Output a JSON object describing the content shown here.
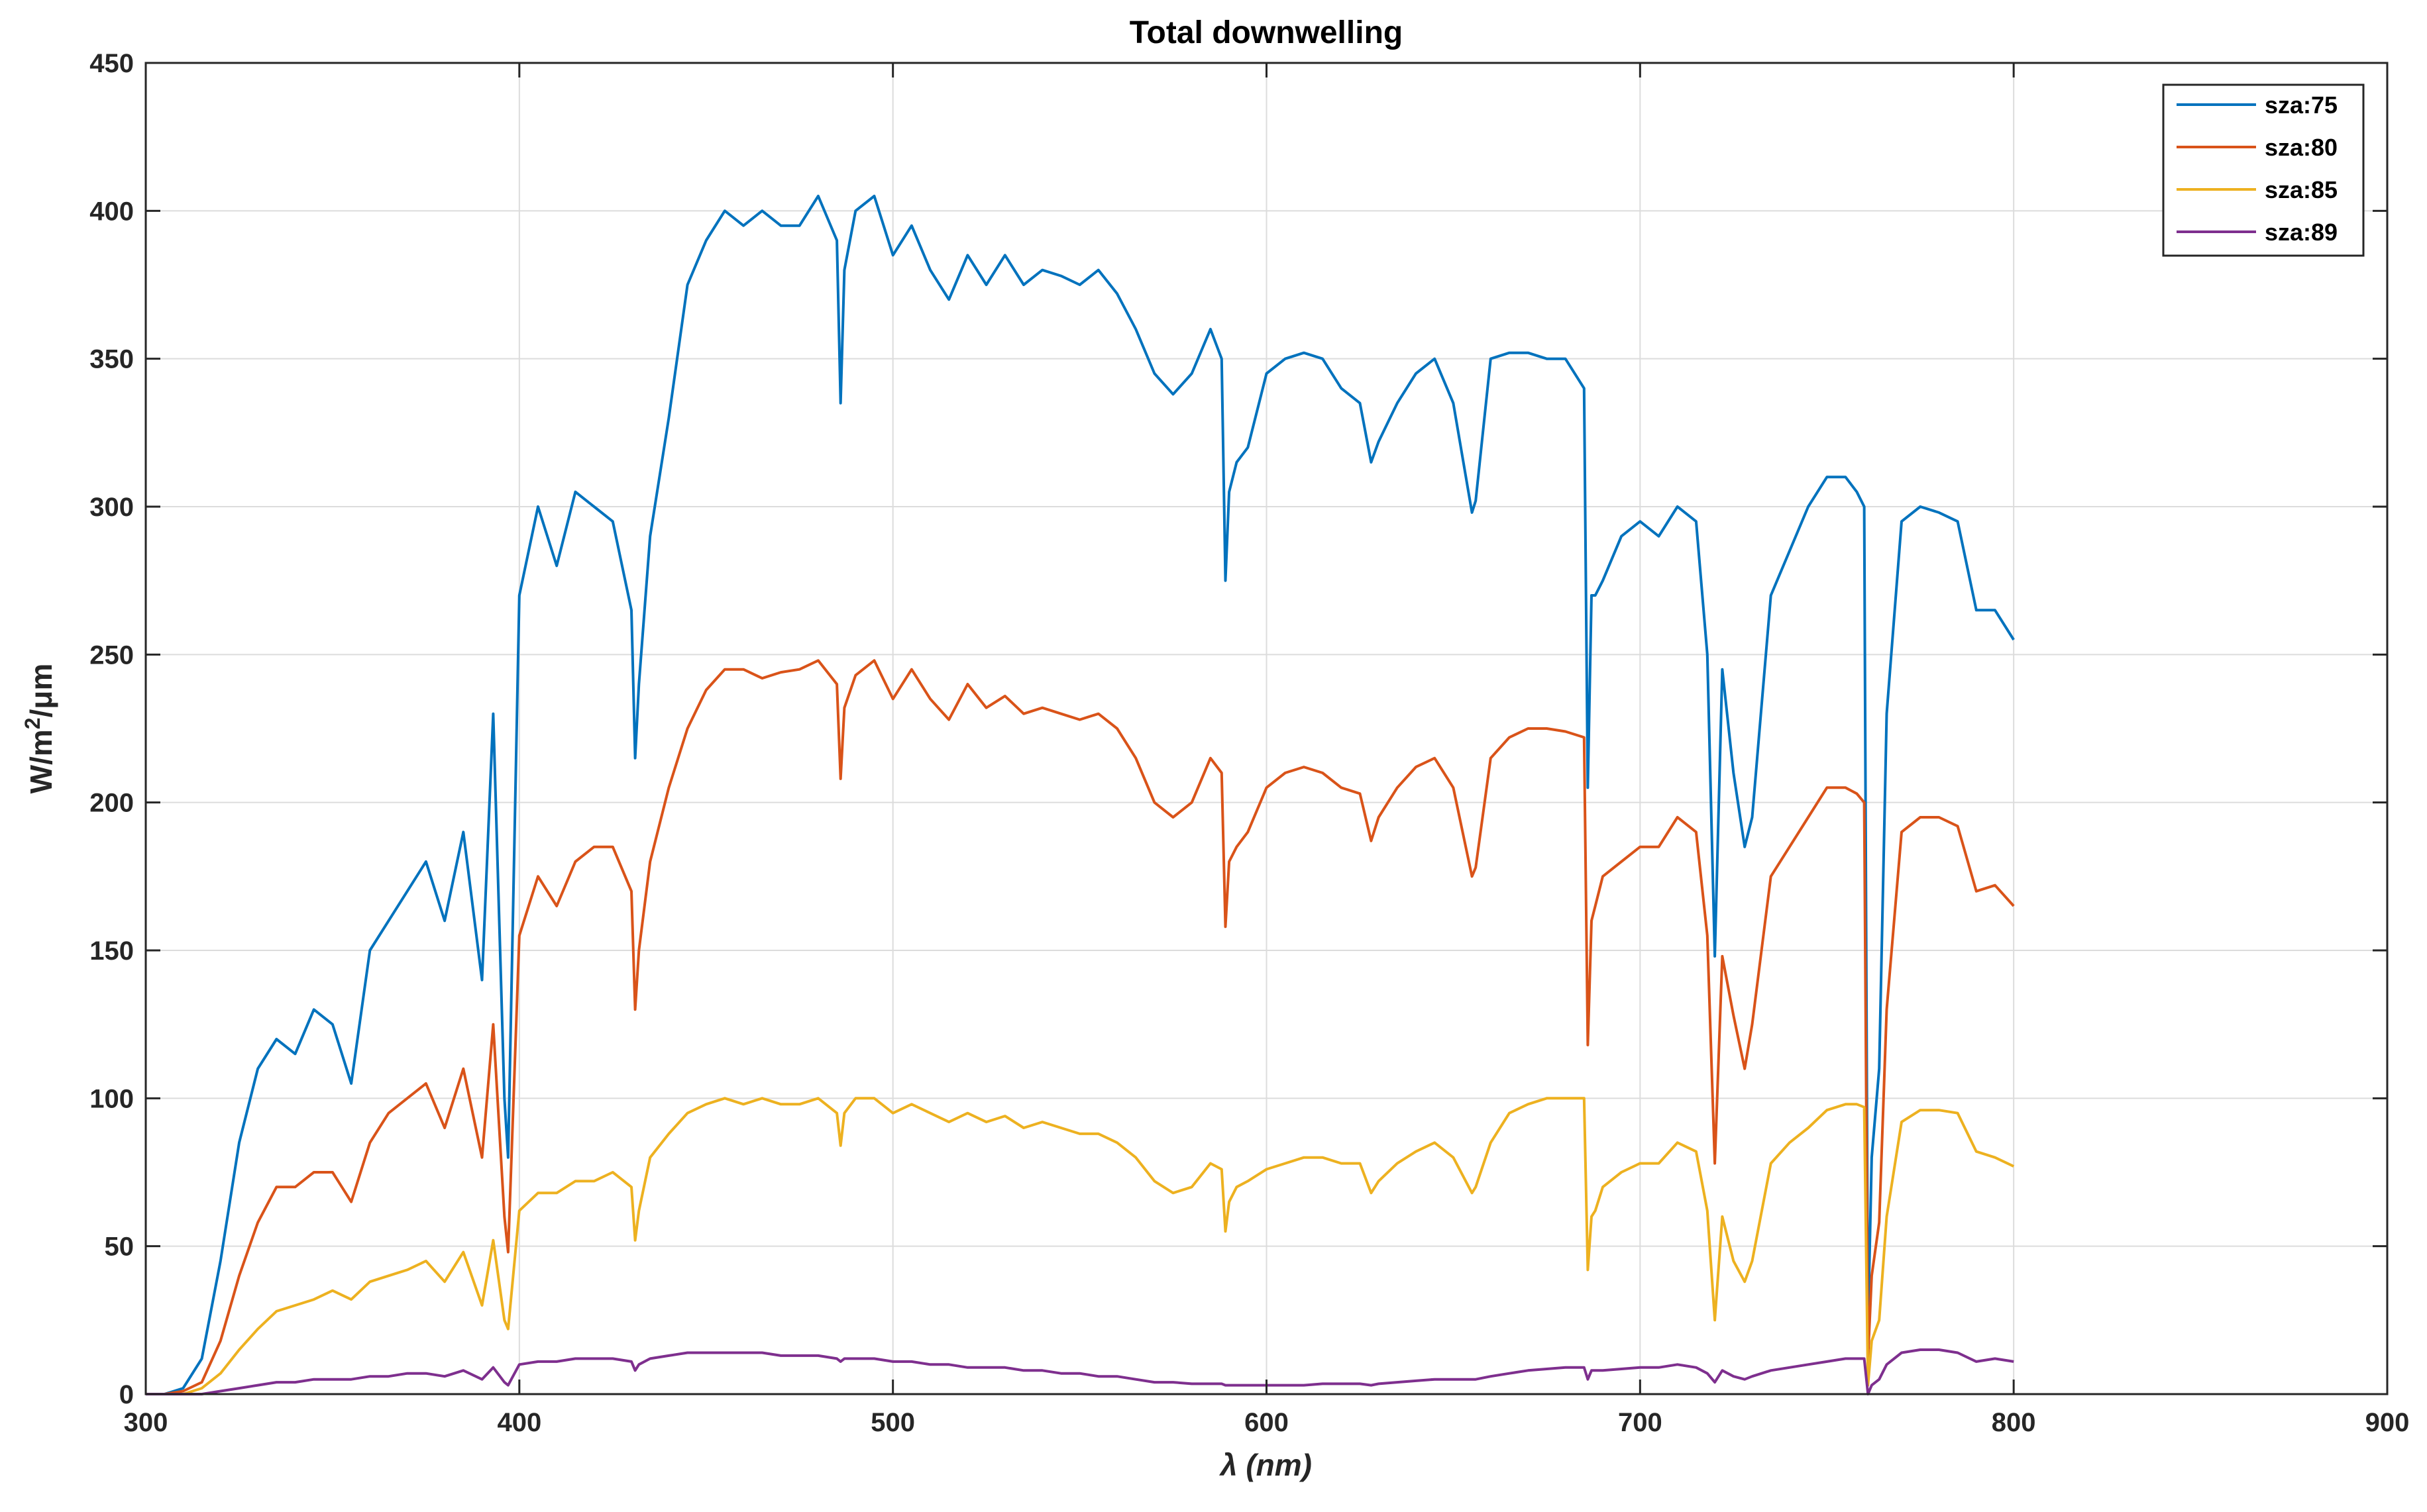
{
  "chart_data": {
    "type": "line",
    "title": "Total downwelling",
    "xlabel": "λ (nm)",
    "ylabel_base": "W/m",
    "ylabel_sup": "2",
    "ylabel_tail": "/μm",
    "xlim": [
      300,
      900
    ],
    "ylim": [
      0,
      450
    ],
    "grid": true,
    "legend_position": "top-right",
    "x_ticks": [
      300,
      400,
      500,
      600,
      700,
      800,
      900
    ],
    "y_ticks": [
      0,
      50,
      100,
      150,
      200,
      250,
      300,
      350,
      400,
      450
    ],
    "x_tick_labels": [
      "300",
      "400",
      "500",
      "600",
      "700",
      "800",
      "900"
    ],
    "y_tick_labels": [
      "0",
      "50",
      "100",
      "150",
      "200",
      "250",
      "300",
      "350",
      "400",
      "450"
    ],
    "x": [
      300,
      305,
      310,
      315,
      320,
      325,
      330,
      335,
      340,
      345,
      350,
      355,
      360,
      365,
      370,
      375,
      380,
      385,
      390,
      393,
      396,
      397,
      400,
      405,
      410,
      415,
      420,
      425,
      430,
      431,
      432,
      435,
      440,
      445,
      450,
      455,
      460,
      465,
      470,
      475,
      480,
      485,
      486,
      487,
      490,
      495,
      500,
      505,
      510,
      515,
      520,
      525,
      530,
      535,
      540,
      545,
      550,
      555,
      560,
      565,
      570,
      575,
      580,
      585,
      588,
      589,
      590,
      592,
      595,
      600,
      605,
      610,
      615,
      620,
      625,
      628,
      630,
      635,
      640,
      645,
      650,
      655,
      656,
      660,
      665,
      670,
      675,
      680,
      685,
      686,
      687,
      688,
      690,
      695,
      700,
      705,
      710,
      715,
      718,
      720,
      722,
      725,
      728,
      730,
      735,
      740,
      745,
      750,
      755,
      758,
      760,
      761,
      762,
      764,
      766,
      770,
      775,
      780,
      785,
      790,
      795,
      800
    ],
    "series": [
      {
        "name": "sza:75",
        "color": "#0072BD",
        "values": [
          0,
          0,
          2,
          12,
          45,
          85,
          110,
          120,
          115,
          130,
          125,
          105,
          150,
          160,
          170,
          180,
          160,
          190,
          140,
          230,
          100,
          80,
          270,
          300,
          280,
          305,
          300,
          295,
          265,
          215,
          240,
          290,
          330,
          375,
          390,
          400,
          395,
          400,
          395,
          395,
          405,
          390,
          335,
          380,
          400,
          405,
          385,
          395,
          380,
          370,
          385,
          375,
          385,
          375,
          380,
          378,
          375,
          380,
          372,
          360,
          345,
          338,
          345,
          360,
          350,
          275,
          305,
          315,
          320,
          345,
          350,
          352,
          350,
          340,
          335,
          315,
          322,
          335,
          345,
          350,
          335,
          298,
          302,
          350,
          352,
          352,
          350,
          350,
          340,
          205,
          270,
          270,
          275,
          290,
          295,
          290,
          300,
          295,
          250,
          148,
          245,
          210,
          185,
          195,
          270,
          285,
          300,
          310,
          310,
          305,
          300,
          22,
          80,
          110,
          230,
          295,
          300,
          298,
          295,
          265,
          265,
          255
        ]
      },
      {
        "name": "sza:80",
        "color": "#D95319",
        "values": [
          0,
          0,
          1,
          4,
          18,
          40,
          58,
          70,
          70,
          75,
          75,
          65,
          85,
          95,
          100,
          105,
          90,
          110,
          80,
          125,
          60,
          48,
          155,
          175,
          165,
          180,
          185,
          185,
          170,
          130,
          150,
          180,
          205,
          225,
          238,
          245,
          245,
          242,
          244,
          245,
          248,
          240,
          208,
          232,
          243,
          248,
          235,
          245,
          235,
          228,
          240,
          232,
          236,
          230,
          232,
          230,
          228,
          230,
          225,
          215,
          200,
          195,
          200,
          215,
          210,
          158,
          180,
          185,
          190,
          205,
          210,
          212,
          210,
          205,
          203,
          187,
          195,
          205,
          212,
          215,
          205,
          175,
          178,
          215,
          222,
          225,
          225,
          224,
          222,
          118,
          160,
          165,
          175,
          180,
          185,
          185,
          195,
          190,
          155,
          78,
          148,
          128,
          110,
          125,
          175,
          185,
          195,
          205,
          205,
          203,
          200,
          12,
          40,
          58,
          130,
          190,
          195,
          195,
          192,
          170,
          172,
          165
        ]
      },
      {
        "name": "sza:85",
        "color": "#EDB120",
        "values": [
          0,
          0,
          0,
          2,
          7,
          15,
          22,
          28,
          30,
          32,
          35,
          32,
          38,
          40,
          42,
          45,
          38,
          48,
          30,
          52,
          25,
          22,
          62,
          68,
          68,
          72,
          72,
          75,
          70,
          52,
          62,
          80,
          88,
          95,
          98,
          100,
          98,
          100,
          98,
          98,
          100,
          95,
          84,
          95,
          100,
          100,
          95,
          98,
          95,
          92,
          95,
          92,
          94,
          90,
          92,
          90,
          88,
          88,
          85,
          80,
          72,
          68,
          70,
          78,
          76,
          55,
          65,
          70,
          72,
          76,
          78,
          80,
          80,
          78,
          78,
          68,
          72,
          78,
          82,
          85,
          80,
          68,
          70,
          85,
          95,
          98,
          100,
          100,
          100,
          42,
          60,
          62,
          70,
          75,
          78,
          78,
          85,
          82,
          62,
          25,
          60,
          45,
          38,
          45,
          78,
          85,
          90,
          96,
          98,
          98,
          97,
          3,
          18,
          25,
          60,
          92,
          96,
          96,
          95,
          82,
          80,
          77
        ]
      },
      {
        "name": "sza:89",
        "color": "#7E2F8E",
        "values": [
          0,
          0,
          0,
          0,
          1,
          2,
          3,
          4,
          4,
          5,
          5,
          5,
          6,
          6,
          7,
          7,
          6,
          8,
          5,
          9,
          4,
          3,
          10,
          11,
          11,
          12,
          12,
          12,
          11,
          8,
          10,
          12,
          13,
          14,
          14,
          14,
          14,
          14,
          13,
          13,
          13,
          12,
          11,
          12,
          12,
          12,
          11,
          11,
          10,
          10,
          9,
          9,
          9,
          8,
          8,
          7,
          7,
          6,
          6,
          5,
          4,
          4,
          3.5,
          3.5,
          3.5,
          3,
          3,
          3,
          3,
          3,
          3,
          3,
          3.5,
          3.5,
          3.5,
          3,
          3.5,
          4,
          4.5,
          5,
          5,
          5,
          5,
          6,
          7,
          8,
          8.5,
          9,
          9,
          5,
          8,
          8,
          8,
          8.5,
          9,
          9,
          10,
          9,
          7,
          4,
          8,
          6,
          5,
          6,
          8,
          9,
          10,
          11,
          12,
          12,
          12,
          0,
          3,
          5,
          10,
          14,
          15,
          15,
          14,
          11,
          12,
          11
        ]
      }
    ]
  }
}
